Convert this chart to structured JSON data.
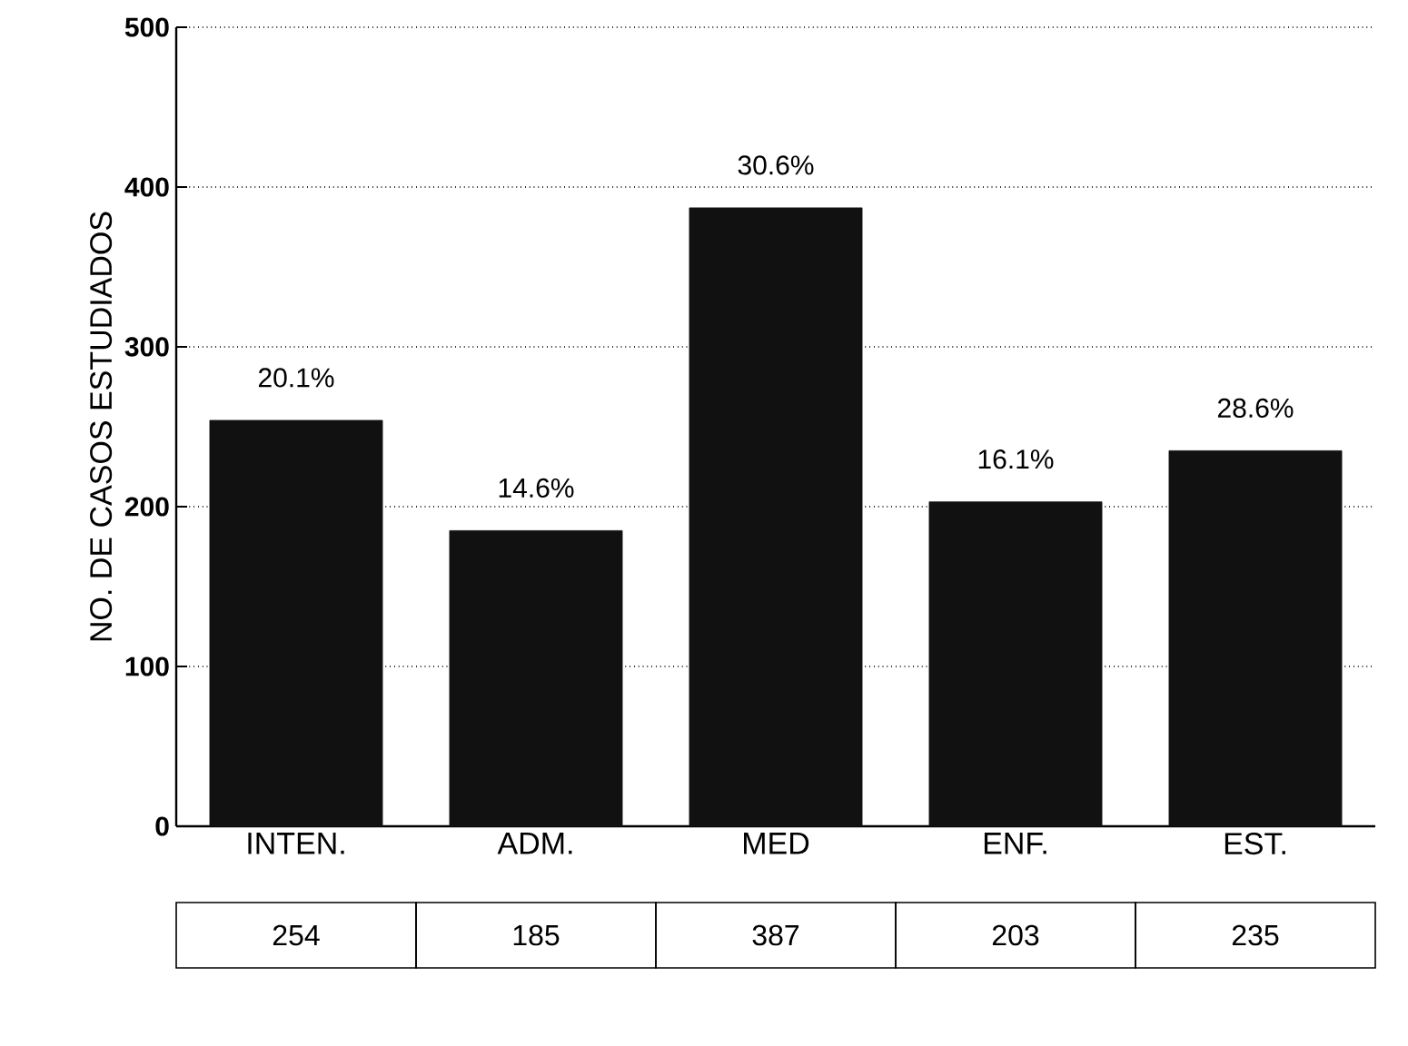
{
  "chart_data": {
    "type": "bar",
    "ylabel": "NO. DE CASOS ESTUDIADOS",
    "categories": [
      "INTEN.",
      "ADM.",
      "MED",
      "ENF.",
      "EST."
    ],
    "values": [
      254,
      185,
      387,
      203,
      235
    ],
    "color": "#111111",
    "ylim": [
      0,
      500
    ],
    "yticks": [
      0,
      100,
      200,
      300,
      400,
      500
    ],
    "grid": "y",
    "data_labels": true,
    "annotations": [
      {
        "text": "20.1%",
        "x": "INTEN.",
        "y": 254
      },
      {
        "text": "14.6%",
        "x": "ADM.",
        "y": 185
      },
      {
        "text": "30.6%",
        "x": "MED",
        "y": 387
      },
      {
        "text": "16.1%",
        "x": "ENF.",
        "y": 203
      },
      {
        "text": "28.6%",
        "x": "EST.",
        "y": 235
      }
    ]
  }
}
